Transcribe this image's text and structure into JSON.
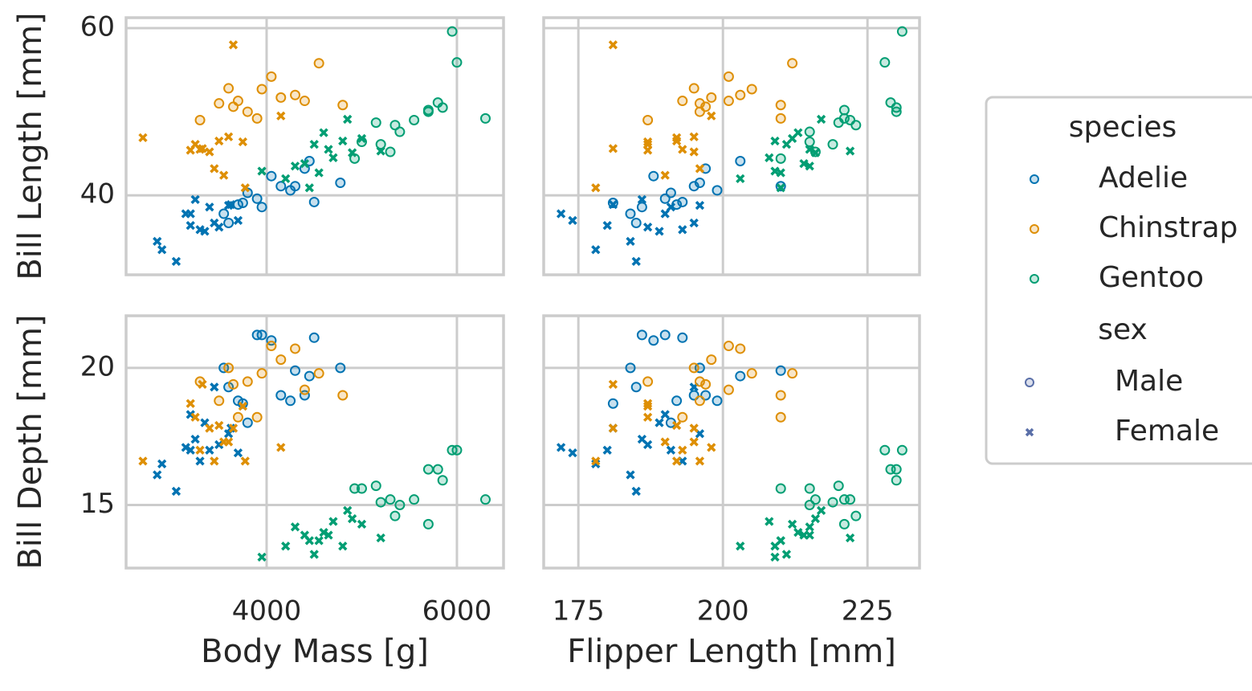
{
  "chart_data": {
    "type": "scatter",
    "grid": true,
    "x_axes": [
      {
        "label": "Body Mass [g]",
        "key": "body_mass",
        "xlim": [
          2523,
          6490
        ],
        "xticks": [
          4000,
          6000
        ]
      },
      {
        "label": "Flipper Length [mm]",
        "key": "flipper",
        "xlim": [
          169,
          234
        ],
        "xticks": [
          175,
          200,
          225
        ]
      }
    ],
    "y_axes": [
      {
        "label": "Bill Length [mm]",
        "key": "bill_length",
        "ylim": [
          30.5,
          61.25
        ],
        "yticks": [
          40,
          60
        ]
      },
      {
        "label": "Bill Depth [mm]",
        "key": "bill_depth",
        "ylim": [
          12.7,
          21.9
        ],
        "yticks": [
          15,
          20
        ]
      }
    ],
    "legend": {
      "position": "right",
      "species_title": "species",
      "sex_title": "sex"
    },
    "sexes": [
      {
        "name": "Male",
        "marker": "circle",
        "color": "#5a6fa8"
      },
      {
        "name": "Female",
        "marker": "x",
        "color": "#5a6fa8"
      }
    ],
    "series": [
      {
        "name": "Adelie",
        "color": "#0173b2",
        "by_sex": [
          {
            "body_mass": [
              3750,
              4150,
              3900,
              4400,
              4500,
              4250,
              3950,
              4775,
              3600,
              3800,
              4050,
              4300,
              3550,
              4450,
              3700
            ],
            "flipper": [
              181,
              195,
              190,
              197,
              193,
              199,
              186,
              196,
              185,
              191,
              188,
              210,
              184,
              203,
              192
            ],
            "bill_length": [
              39.1,
              41.1,
              39.6,
              43.2,
              39.2,
              40.6,
              38.6,
              41.5,
              36.7,
              40.3,
              42.3,
              41.1,
              37.8,
              44.1,
              38.9
            ],
            "bill_depth": [
              18.7,
              19.0,
              21.2,
              19.0,
              21.1,
              18.8,
              21.2,
              20.0,
              19.3,
              18.0,
              21.0,
              19.9,
              20.0,
              19.7,
              18.8
            ]
          },
          {
            "body_mass": [
              3250,
              3450,
              3625,
              3200,
              2850,
              3150,
              3300,
              3500,
              2900,
              3400,
              3050,
              3700,
              3350,
              3600,
              3200
            ],
            "flipper": [
              186,
              195,
              181,
              190,
              184,
              172,
              193,
              187,
              178,
              191,
              185,
              174,
              189,
              196,
              180
            ],
            "bill_length": [
              39.5,
              36.7,
              38.9,
              37.8,
              34.5,
              37.8,
              35.9,
              36.2,
              33.5,
              38.6,
              32.1,
              37.0,
              35.7,
              38.8,
              36.4
            ],
            "bill_depth": [
              17.4,
              19.3,
              17.8,
              18.3,
              16.1,
              17.1,
              16.6,
              17.2,
              16.5,
              17.0,
              15.5,
              16.9,
              18.0,
              17.6,
              17.0
            ]
          }
        ]
      },
      {
        "name": "Chinstrap",
        "color": "#de8f05",
        "by_sex": [
          {
            "body_mass": [
              3800,
              4400,
              3950,
              3700,
              4550,
              3650,
              4300,
              4050,
              3500,
              3900,
              4800,
              3300,
              4150,
              3600
            ],
            "flipper": [
              196,
              201,
              205,
              193,
              212,
              197,
              203,
              201,
              196,
              210,
              210,
              187,
              198,
              195
            ],
            "bill_length": [
              50.0,
              51.3,
              52.7,
              51.3,
              55.8,
              50.6,
              52.0,
              54.2,
              51.0,
              49.2,
              50.8,
              49.0,
              51.7,
              52.8
            ],
            "bill_depth": [
              19.5,
              19.2,
              19.8,
              18.2,
              19.8,
              19.4,
              20.7,
              20.8,
              18.8,
              18.2,
              19.0,
              19.5,
              20.3,
              20.0
            ]
          },
          {
            "body_mass": [
              3500,
              3200,
              3400,
              2700,
              3650,
              3550,
              3300,
              3250,
              3450,
              3600,
              3750,
              4150,
              3775,
              3325
            ],
            "flipper": [
              192,
              187,
              195,
              192,
              181,
              190,
              193,
              187,
              196,
              195,
              187,
              198,
              178,
              181
            ],
            "bill_length": [
              46.5,
              45.4,
              45.2,
              46.9,
              58.0,
              42.4,
              45.5,
              46.1,
              43.2,
              47.0,
              46.4,
              49.5,
              40.9,
              45.6
            ],
            "bill_depth": [
              17.9,
              18.7,
              17.8,
              16.6,
              17.8,
              17.3,
              17.0,
              18.2,
              16.6,
              17.3,
              18.6,
              17.1,
              16.6,
              19.4
            ]
          }
        ]
      },
      {
        "name": "Gentoo",
        "color": "#029e73",
        "by_sex": [
          {
            "body_mass": [
              5700,
              5700,
              5400,
              5200,
              5150,
              5550,
              5850,
              6300,
              5000,
              5350,
              5950,
              6000,
              5300,
              5800,
              4925
            ],
            "flipper": [
              230,
              221,
              215,
              219,
              220,
              222,
              230,
              221,
              215,
              223,
              231,
              228,
              216,
              229,
              210
            ],
            "bill_length": [
              50.0,
              50.2,
              47.6,
              46.1,
              48.7,
              49.0,
              50.5,
              49.2,
              46.4,
              48.4,
              59.6,
              55.9,
              45.2,
              51.1,
              44.4
            ],
            "bill_depth": [
              16.3,
              14.3,
              15.0,
              15.1,
              15.7,
              15.2,
              15.9,
              15.2,
              15.6,
              14.6,
              17.0,
              17.0,
              15.2,
              16.3,
              15.6
            ]
          },
          {
            "body_mass": [
              4500,
              4450,
              4550,
              4800,
              4400,
              4650,
              4700,
              5000,
              4200,
              4850,
              4300,
              5200,
              3950,
              4600,
              4900
            ],
            "flipper": [
              211,
              210,
              210,
              209,
              214,
              215,
              208,
              212,
              203,
              217,
              215,
              222,
              209,
              213,
              216
            ],
            "bill_length": [
              46.1,
              40.9,
              42.7,
              46.5,
              43.8,
              45.5,
              44.5,
              46.8,
              42.0,
              49.1,
              43.5,
              45.3,
              42.9,
              47.5,
              45.1
            ],
            "bill_depth": [
              13.2,
              13.7,
              13.7,
              13.5,
              13.9,
              13.9,
              14.4,
              14.3,
              13.5,
              14.8,
              14.2,
              13.8,
              13.1,
              14.0,
              14.5
            ]
          }
        ]
      }
    ]
  }
}
